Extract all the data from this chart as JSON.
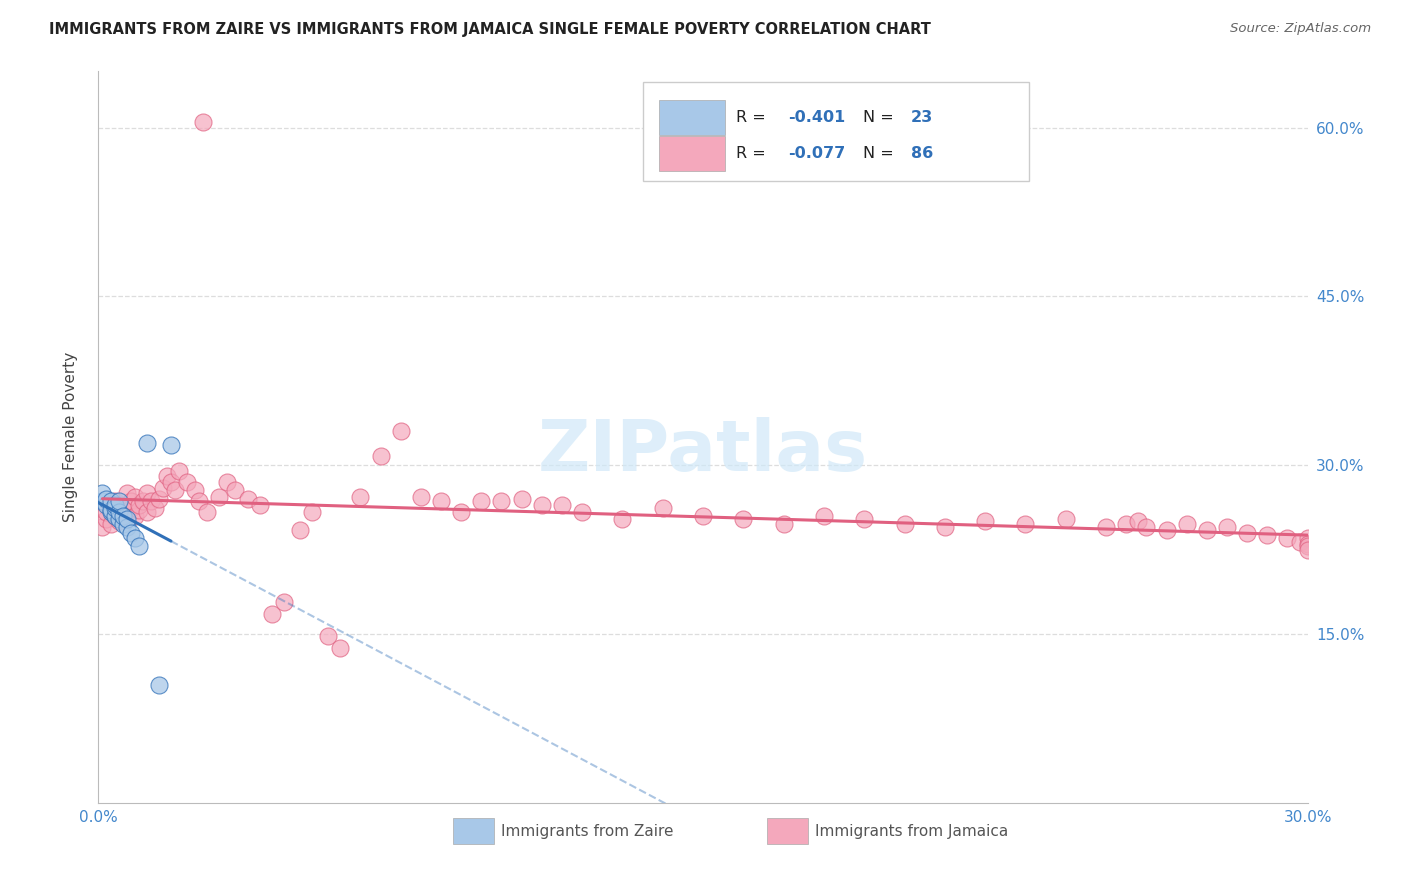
{
  "title": "IMMIGRANTS FROM ZAIRE VS IMMIGRANTS FROM JAMAICA SINGLE FEMALE POVERTY CORRELATION CHART",
  "source": "Source: ZipAtlas.com",
  "ylabel": "Single Female Poverty",
  "xlim": [
    0.0,
    0.3
  ],
  "ylim": [
    0.0,
    0.65
  ],
  "yticks": [
    0.15,
    0.3,
    0.45,
    0.6
  ],
  "xticks": [
    0.0,
    0.05,
    0.1,
    0.15,
    0.2,
    0.25,
    0.3
  ],
  "r_zaire": -0.401,
  "n_zaire": 23,
  "r_jamaica": -0.077,
  "n_jamaica": 86,
  "color_zaire": "#A8C8E8",
  "color_jamaica": "#F4A8BC",
  "line_color_zaire": "#3070B8",
  "line_color_jamaica": "#E06080",
  "background_color": "#FFFFFF",
  "grid_color": "#DDDDDD",
  "zaire_x": [
    0.001,
    0.001,
    0.002,
    0.002,
    0.003,
    0.003,
    0.003,
    0.004,
    0.004,
    0.004,
    0.005,
    0.005,
    0.005,
    0.006,
    0.006,
    0.007,
    0.007,
    0.008,
    0.009,
    0.01,
    0.012,
    0.015,
    0.018
  ],
  "zaire_y": [
    0.268,
    0.275,
    0.265,
    0.27,
    0.258,
    0.26,
    0.268,
    0.255,
    0.262,
    0.265,
    0.252,
    0.258,
    0.268,
    0.248,
    0.255,
    0.245,
    0.252,
    0.24,
    0.235,
    0.228,
    0.32,
    0.105,
    0.318
  ],
  "jamaica_x": [
    0.001,
    0.002,
    0.002,
    0.003,
    0.003,
    0.004,
    0.004,
    0.005,
    0.005,
    0.006,
    0.006,
    0.007,
    0.007,
    0.008,
    0.008,
    0.009,
    0.009,
    0.01,
    0.01,
    0.011,
    0.012,
    0.012,
    0.013,
    0.014,
    0.015,
    0.016,
    0.017,
    0.018,
    0.019,
    0.02,
    0.022,
    0.024,
    0.025,
    0.027,
    0.03,
    0.032,
    0.034,
    0.037,
    0.04,
    0.043,
    0.046,
    0.05,
    0.053,
    0.057,
    0.06,
    0.065,
    0.07,
    0.075,
    0.08,
    0.085,
    0.09,
    0.095,
    0.1,
    0.105,
    0.11,
    0.115,
    0.12,
    0.13,
    0.14,
    0.15,
    0.16,
    0.17,
    0.18,
    0.19,
    0.2,
    0.21,
    0.22,
    0.23,
    0.24,
    0.25,
    0.255,
    0.258,
    0.26,
    0.265,
    0.27,
    0.275,
    0.28,
    0.285,
    0.29,
    0.295,
    0.298,
    0.3,
    0.3,
    0.3,
    0.3,
    0.026
  ],
  "jamaica_y": [
    0.245,
    0.252,
    0.258,
    0.248,
    0.262,
    0.255,
    0.268,
    0.25,
    0.26,
    0.255,
    0.265,
    0.258,
    0.275,
    0.262,
    0.268,
    0.255,
    0.272,
    0.26,
    0.265,
    0.268,
    0.258,
    0.275,
    0.268,
    0.262,
    0.27,
    0.28,
    0.29,
    0.285,
    0.278,
    0.295,
    0.285,
    0.278,
    0.268,
    0.258,
    0.272,
    0.285,
    0.278,
    0.27,
    0.265,
    0.168,
    0.178,
    0.242,
    0.258,
    0.148,
    0.138,
    0.272,
    0.308,
    0.33,
    0.272,
    0.268,
    0.258,
    0.268,
    0.268,
    0.27,
    0.265,
    0.265,
    0.258,
    0.252,
    0.262,
    0.255,
    0.252,
    0.248,
    0.255,
    0.252,
    0.248,
    0.245,
    0.25,
    0.248,
    0.252,
    0.245,
    0.248,
    0.25,
    0.245,
    0.242,
    0.248,
    0.242,
    0.245,
    0.24,
    0.238,
    0.235,
    0.232,
    0.235,
    0.23,
    0.228,
    0.225,
    0.605
  ]
}
